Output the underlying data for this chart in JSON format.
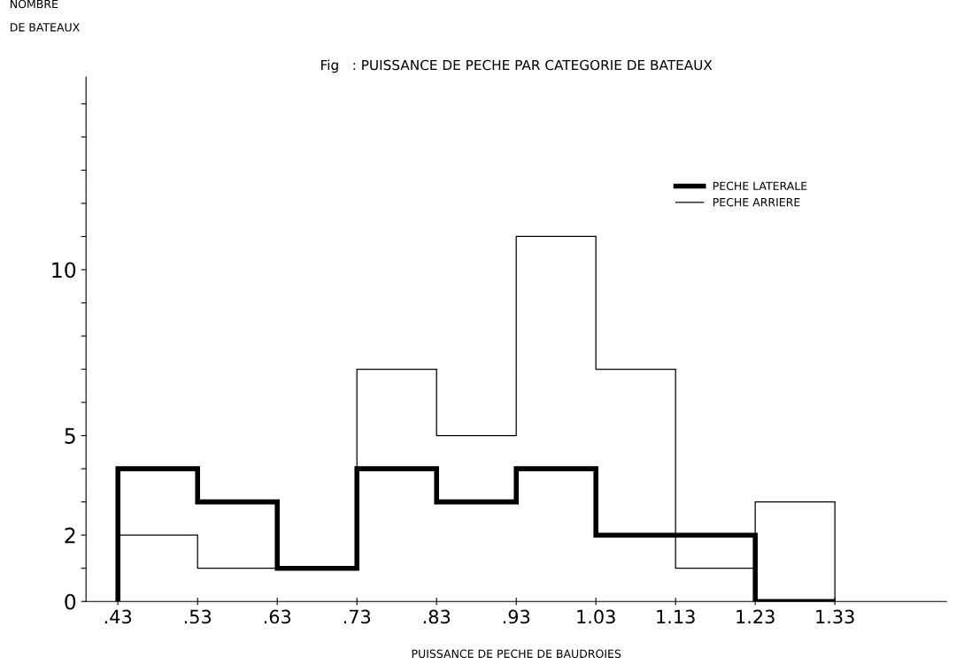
{
  "chart_data": {
    "type": "histogram",
    "title": "Fig   : PUISSANCE DE PECHE PAR CATEGORIE DE BATEAUX",
    "xlabel": "PUISSANCE DE PECHE DE BAUDROIES",
    "ylabel": "NOMBRE\nDE BATEAUX",
    "bins": [
      0.43,
      0.53,
      0.63,
      0.73,
      0.83,
      0.93,
      1.03,
      1.13,
      1.23,
      1.33
    ],
    "series": [
      {
        "name": "PECHE LATERALE",
        "color": "#000000",
        "values": [
          4,
          3,
          1,
          4,
          3,
          4,
          2,
          2,
          0
        ]
      },
      {
        "name": "PECHE ARRIERE",
        "color": "#000000",
        "values": [
          2,
          1,
          1,
          7,
          5,
          11,
          7,
          1,
          3
        ]
      }
    ],
    "xlim": [
      0.39,
      1.47
    ],
    "xticks": [
      {
        "value": 0.43,
        "label": ".43"
      },
      {
        "value": 0.53,
        "label": ".53"
      },
      {
        "value": 0.63,
        "label": ".63"
      },
      {
        "value": 0.73,
        "label": ".73"
      },
      {
        "value": 0.83,
        "label": ".83"
      },
      {
        "value": 0.93,
        "label": ".93"
      },
      {
        "value": 1.03,
        "label": "1.03"
      },
      {
        "value": 1.13,
        "label": "1.13"
      },
      {
        "value": 1.23,
        "label": "1.23"
      },
      {
        "value": 1.33,
        "label": "1.33"
      }
    ],
    "ylim": [
      0,
      15.8
    ],
    "yticks": [
      {
        "value": 0,
        "label": "0"
      },
      {
        "value": 1,
        "label": null
      },
      2,
      {
        "value": 3,
        "label": null
      },
      {
        "value": 4,
        "label": null
      },
      5,
      {
        "value": 6,
        "label": null
      },
      {
        "value": 7,
        "label": null
      },
      {
        "value": 8,
        "label": null
      },
      {
        "value": 9,
        "label": null
      },
      10,
      {
        "value": 11,
        "label": null
      },
      {
        "value": 12,
        "label": null
      },
      {
        "value": 13,
        "label": null
      },
      {
        "value": 14,
        "label": null
      },
      {
        "value": 15,
        "label": null
      }
    ],
    "grid": false,
    "legend": "top right"
  }
}
